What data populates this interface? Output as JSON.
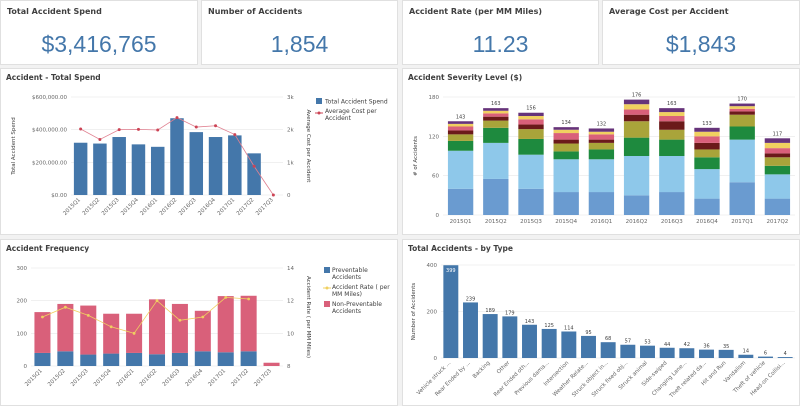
{
  "kpis": [
    {
      "title": "Total Accident Spend",
      "value": "$3,416,765"
    },
    {
      "title": "Number of Accidents",
      "value": "1,854"
    },
    {
      "title": "Accident Rate (per MM Miles)",
      "value": "11.23"
    },
    {
      "title": "Average Cost per Accident",
      "value": "$1,843"
    }
  ],
  "colors": {
    "blue": "#4477aa",
    "red": "#cc4455",
    "pink": "#d9607a",
    "yellow": "#f0d060",
    "light_blue": "#8ec8ea",
    "mid_blue": "#6a9bd0",
    "green": "#1e8a3e",
    "olive": "#a9a43a",
    "maroon": "#6b1a1a",
    "purple": "#66337a"
  },
  "chart_data": [
    {
      "type": "bar",
      "title": "Accident - Total Spend",
      "categories": [
        "2015Q1",
        "2015Q2",
        "2015Q3",
        "2015Q4",
        "2016Q1",
        "2016Q2",
        "2016Q3",
        "2016Q4",
        "2017Q1",
        "2017Q2",
        "2017Q3"
      ],
      "series": [
        {
          "name": "Total Accident Spend",
          "axis": "left",
          "values": [
            320000,
            315000,
            355000,
            310000,
            295000,
            470000,
            385000,
            355000,
            365000,
            255000,
            0
          ]
        },
        {
          "name": "Average Cost per Accident",
          "axis": "right",
          "kind": "line",
          "values": [
            2020,
            1700,
            2000,
            2010,
            1990,
            2370,
            2080,
            2120,
            1850,
            880,
            0
          ]
        }
      ],
      "ylabel": "Total Accident Spend",
      "y2label": "Average Cost per Accident",
      "ylim": [
        0,
        600000
      ],
      "y2lim": [
        0,
        3000
      ],
      "yticks": [
        "$0.00",
        "$200,000.00",
        "$400,000.00",
        "$600,000.00"
      ],
      "y2ticks": [
        "0",
        "1k",
        "2k",
        "3k"
      ]
    },
    {
      "type": "bar",
      "stacked": true,
      "title": "Accident Severity Level ($)",
      "categories": [
        "2015Q1",
        "2015Q2",
        "2015Q3",
        "2015Q4",
        "2016Q1",
        "2016Q2",
        "2016Q3",
        "2016Q4",
        "2017Q1",
        "2017Q2"
      ],
      "totals": [
        143,
        163,
        156,
        134,
        132,
        176,
        163,
        133,
        170,
        117
      ],
      "segment_colors": [
        "#6a9bd0",
        "#8ec8ea",
        "#1e8a3e",
        "#a9a43a",
        "#6b1a1a",
        "#d9607a",
        "#f0d060",
        "#66337a"
      ],
      "segments": [
        [
          40,
          55,
          40,
          35,
          35,
          30,
          35,
          25,
          50,
          25
        ],
        [
          58,
          55,
          52,
          50,
          50,
          60,
          55,
          45,
          65,
          37
        ],
        [
          15,
          23,
          24,
          12,
          15,
          28,
          25,
          18,
          20,
          13
        ],
        [
          10,
          11,
          15,
          12,
          10,
          25,
          15,
          12,
          18,
          13
        ],
        [
          6,
          6,
          7,
          6,
          5,
          10,
          13,
          10,
          5,
          6
        ],
        [
          6,
          5,
          8,
          10,
          8,
          8,
          8,
          10,
          4,
          8
        ],
        [
          4,
          4,
          5,
          5,
          4,
          8,
          6,
          7,
          4,
          8
        ],
        [
          4,
          4,
          5,
          4,
          5,
          7,
          6,
          6,
          4,
          7
        ]
      ],
      "ylabel": "# of Accidents",
      "ylim": [
        0,
        180
      ],
      "yticks": [
        "0",
        "60",
        "120",
        "180"
      ]
    },
    {
      "type": "bar",
      "title": "Accident Frequency",
      "categories": [
        "2015Q1",
        "2015Q2",
        "2015Q3",
        "2015Q4",
        "2016Q1",
        "2016Q2",
        "2016Q3",
        "2016Q4",
        "2017Q1",
        "2017Q2",
        "2017Q3"
      ],
      "series": [
        {
          "name": "Preventable Accidents",
          "values": [
            40,
            45,
            35,
            38,
            40,
            36,
            40,
            45,
            42,
            45,
            0
          ]
        },
        {
          "name": "Non-Preventable Accidents",
          "values": [
            125,
            145,
            150,
            122,
            120,
            168,
            150,
            124,
            172,
            170,
            10
          ]
        },
        {
          "name": "Accident Rate ( per MM Miles)",
          "axis": "right",
          "kind": "line",
          "values": [
            11.0,
            11.6,
            11.1,
            10.4,
            10.0,
            12.0,
            10.8,
            11.0,
            12.2,
            12.1,
            null
          ]
        }
      ],
      "ylabel": "",
      "y2label": "Accident Rate ( per MM Miles)",
      "ylim": [
        0,
        300
      ],
      "y2lim": [
        8,
        14
      ],
      "yticks": [
        "0",
        "100",
        "200",
        "300"
      ],
      "y2ticks": [
        "8",
        "10",
        "12",
        "14"
      ]
    },
    {
      "type": "bar",
      "title": "Total Accidents - by Type",
      "categories": [
        "Vehicle struck ...",
        "Rear Ended by ...",
        "Backing",
        "Other",
        "Rear Ended oth...",
        "Previous dama...",
        "Intersection",
        "Weather Relate...",
        "Struck object in...",
        "Struck fixed obj...",
        "Struck animal",
        "Side-swiped",
        "Changing Lane...",
        "Theft related da...",
        "Hit and Run",
        "Vandalism",
        "Theft of vehicle",
        "Head-on Collisi..."
      ],
      "values": [
        399,
        239,
        189,
        179,
        143,
        125,
        114,
        95,
        68,
        57,
        53,
        44,
        42,
        36,
        35,
        14,
        6,
        4
      ],
      "ylabel": "Number of Accidents",
      "ylim": [
        0,
        400
      ],
      "yticks": [
        "0",
        "200",
        "400"
      ]
    }
  ]
}
